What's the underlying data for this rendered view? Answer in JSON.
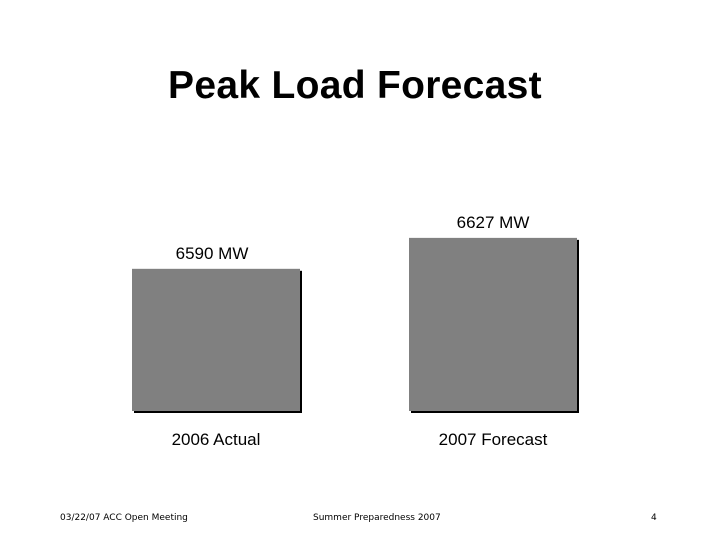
{
  "slide": {
    "title": "Peak Load Forecast"
  },
  "footer": {
    "left": "03/22/07 ACC Open Meeting",
    "center": "Summer Preparedness 2007",
    "page_number": "4"
  },
  "chart_data": {
    "type": "bar",
    "categories": [
      "2006 Actual",
      "2007 Forecast"
    ],
    "values": [
      6590,
      6627
    ],
    "data_labels": [
      "6590 MW",
      "6627 MW"
    ],
    "title": "",
    "xlabel": "",
    "ylabel": "",
    "ylim": [
      6420,
      6640
    ],
    "grid": false,
    "bar_color": "#808080",
    "bar_shadow_color": "#000000"
  }
}
